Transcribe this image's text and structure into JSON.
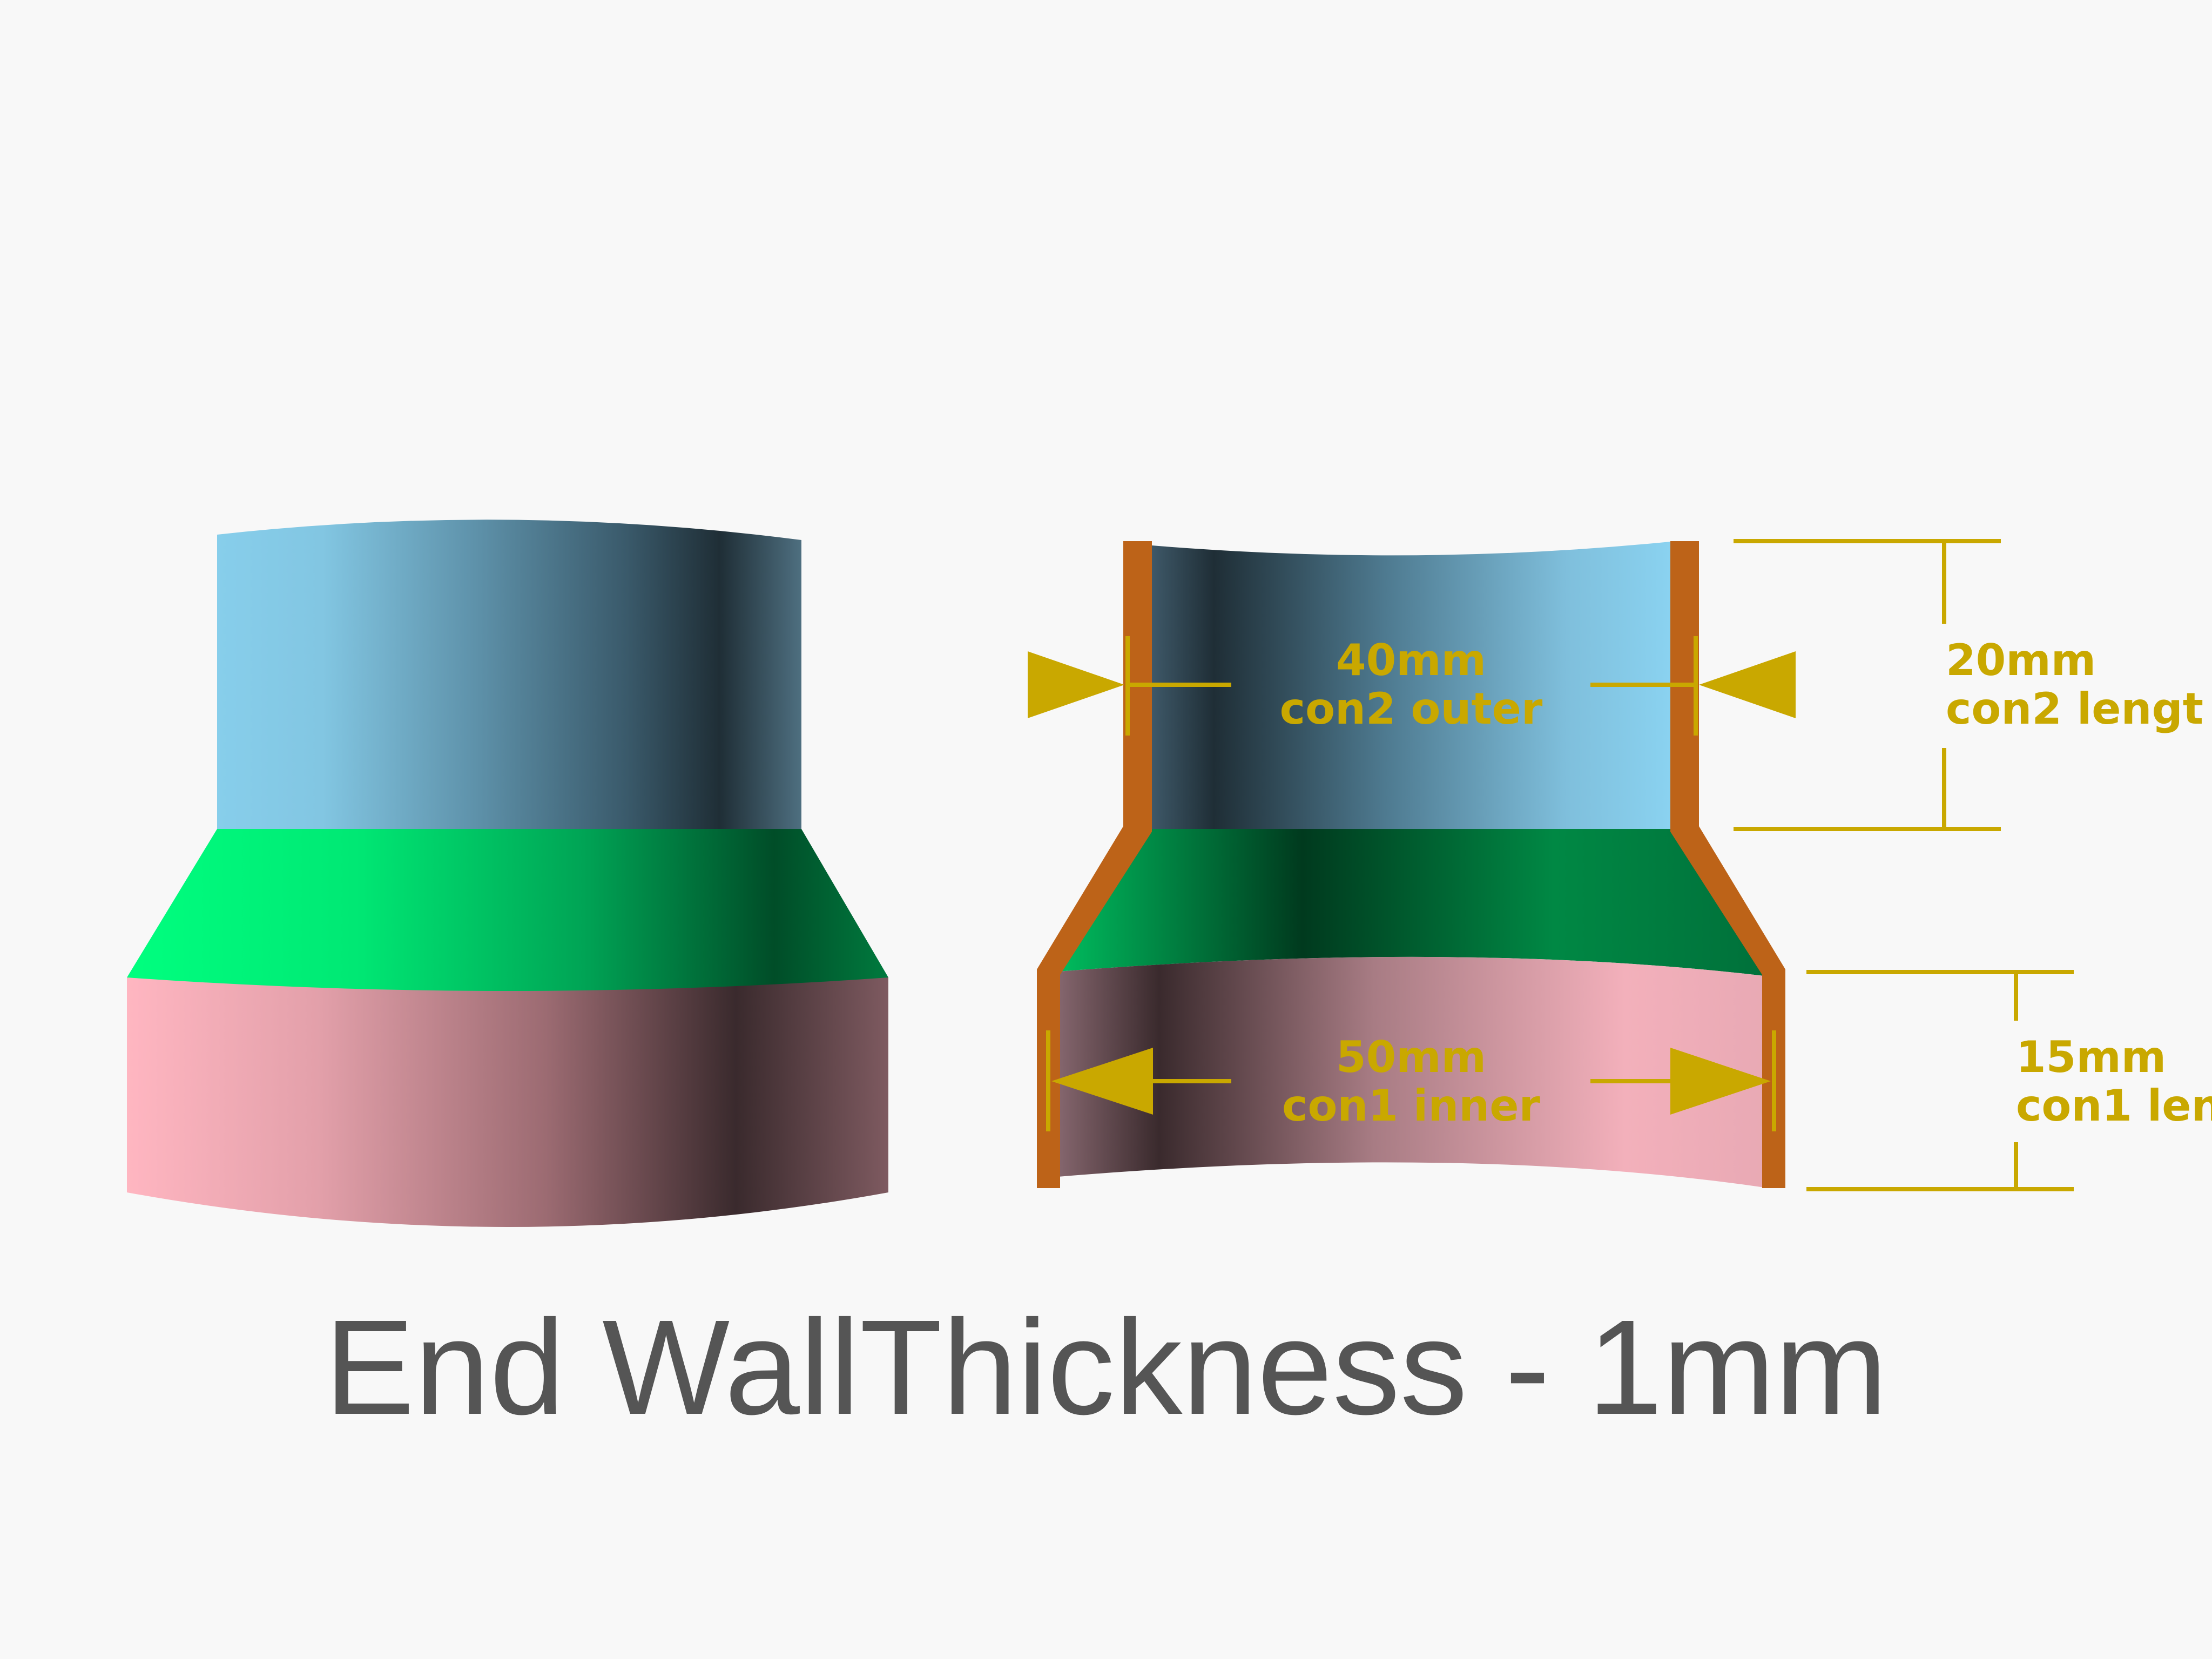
{
  "caption": "End WallThickness - 1mm",
  "annotations": {
    "con2_outer": {
      "value": "40mm",
      "label": "con2 outer"
    },
    "con2_length": {
      "value": "20mm",
      "label": "con2 lengt"
    },
    "con1_inner": {
      "value": "50mm",
      "label": "con1 inner"
    },
    "con1_length": {
      "value": "15mm",
      "label": "con1 len"
    }
  },
  "colors": {
    "background": "#f8f8f8",
    "connector2": "#87ceeb",
    "transition": "#00ff7f",
    "connector1": "#ffb6c1",
    "wall": "#bd6318",
    "dimension": "#c9a800",
    "caption": "#555555"
  }
}
